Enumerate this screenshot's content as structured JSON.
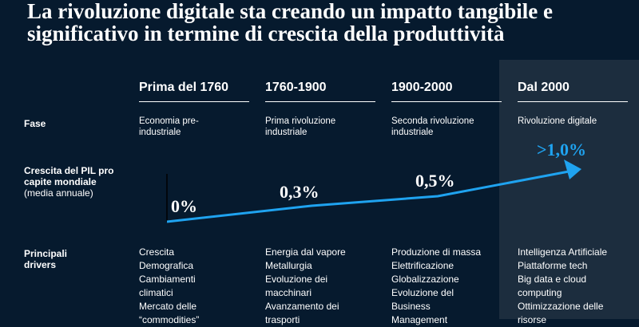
{
  "title": "La rivoluzione digitale sta creando un impatto tangibile e significativo in termine di crescita della produttività",
  "periods": [
    "Prima del 1760",
    "1760-1900",
    "1900-2000",
    "Dal 2000"
  ],
  "row_labels": {
    "phase": "Fase",
    "gdp_main": "Crescita del PIL pro capite mondiale",
    "gdp_sub": "(media annuale)",
    "drivers": "Principali drivers"
  },
  "phases": [
    "Economia pre-industriale",
    "Prima rivoluzione industriale",
    "Seconda rivoluzione industriale",
    "Rivoluzione digitale"
  ],
  "growth_values": [
    "0%",
    "0,3%",
    "0,5%",
    ">1,0%"
  ],
  "drivers": [
    [
      "Crescita",
      "Demografica",
      "Cambiamenti",
      "climatici",
      "Mercato delle",
      "“commodities”"
    ],
    [
      "Energia dal vapore",
      "Metallurgia",
      "Evoluzione dei",
      "macchinari",
      "Avanzamento dei",
      "trasporti"
    ],
    [
      "Produzione di massa",
      "Elettrificazione",
      "Globalizzazione",
      "Evoluzione del",
      "Business",
      "Management"
    ],
    [
      "Intelligenza Artificiale",
      "Piattaforme tech",
      "Big data e cloud",
      "computing",
      "Ottimizzazione delle",
      "risorse"
    ]
  ],
  "colors": {
    "background": "#061a2e",
    "highlight_column": "#1c2d3e",
    "arrow": "#1fa3f0",
    "text": "#ffffff"
  }
}
